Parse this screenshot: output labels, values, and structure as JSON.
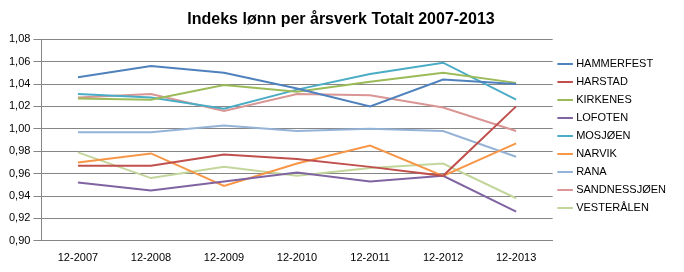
{
  "chart_data": {
    "type": "line",
    "title": "Indeks lønn per årsverk Totalt 2007-2013",
    "categories": [
      "12-2007",
      "12-2008",
      "12-2009",
      "12-2010",
      "12-2011",
      "12-2012",
      "12-2013"
    ],
    "series": [
      {
        "name": "HAMMERFEST",
        "color": "#4F81BD",
        "values": [
          1.046,
          1.056,
          1.05,
          1.036,
          1.02,
          1.044,
          1.04
        ]
      },
      {
        "name": "HARSTAD",
        "color": "#C0504D",
        "values": [
          0.967,
          0.967,
          0.977,
          0.973,
          0.966,
          0.958,
          1.02
        ]
      },
      {
        "name": "KIRKENES",
        "color": "#9BBB59",
        "values": [
          1.027,
          1.026,
          1.039,
          1.033,
          1.042,
          1.05,
          1.041
        ]
      },
      {
        "name": "LOFOTEN",
        "color": "#8064A2",
        "values": [
          0.952,
          0.945,
          0.953,
          0.961,
          0.953,
          0.958,
          0.926
        ]
      },
      {
        "name": "MOSJØEN",
        "color": "#4BACC6",
        "values": [
          1.031,
          1.028,
          1.018,
          1.035,
          1.049,
          1.059,
          1.026
        ]
      },
      {
        "name": "NARVIK",
        "color": "#F79646",
        "values": [
          0.97,
          0.978,
          0.949,
          0.969,
          0.985,
          0.958,
          0.987
        ]
      },
      {
        "name": "RANA",
        "color": "#95B3D7",
        "values": [
          0.997,
          0.997,
          1.003,
          0.998,
          1.0,
          0.998,
          0.975
        ]
      },
      {
        "name": "SANDNESSJØEN",
        "color": "#D99694",
        "values": [
          1.028,
          1.031,
          1.016,
          1.031,
          1.03,
          1.019,
          0.998
        ]
      },
      {
        "name": "VESTERÅLEN",
        "color": "#C3D69B",
        "values": [
          0.979,
          0.956,
          0.966,
          0.958,
          0.965,
          0.969,
          0.938
        ]
      }
    ],
    "ylim": [
      0.9,
      1.08
    ],
    "yticks": [
      {
        "value": 0.9,
        "label": "0,90"
      },
      {
        "value": 0.92,
        "label": "0,92"
      },
      {
        "value": 0.94,
        "label": "0,94"
      },
      {
        "value": 0.96,
        "label": "0,96"
      },
      {
        "value": 0.98,
        "label": "0,98"
      },
      {
        "value": 1.0,
        "label": "1,00"
      },
      {
        "value": 1.02,
        "label": "1,02"
      },
      {
        "value": 1.04,
        "label": "1,04"
      },
      {
        "value": 1.06,
        "label": "1,06"
      },
      {
        "value": 1.08,
        "label": "1,08"
      }
    ],
    "grid": true,
    "legend": "right"
  }
}
